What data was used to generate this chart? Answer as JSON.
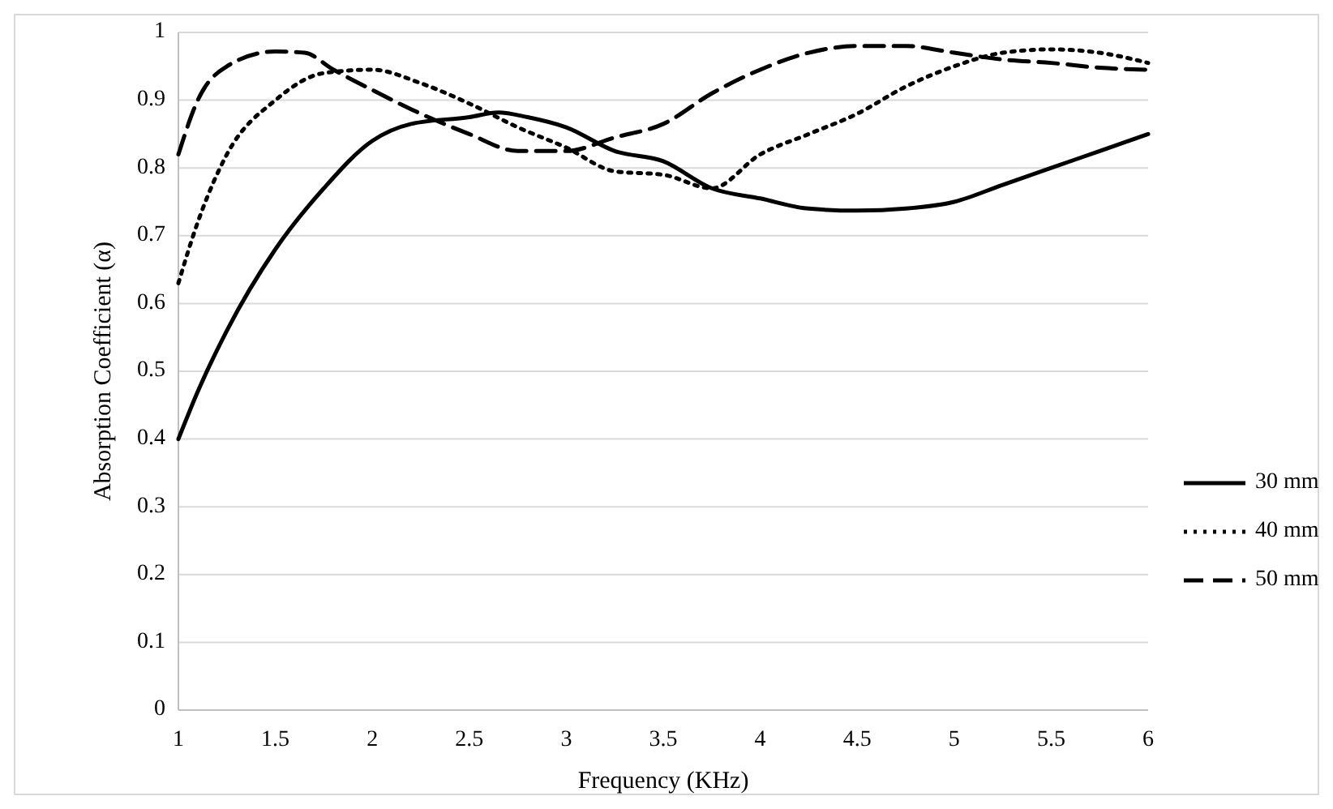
{
  "chart_data": {
    "type": "line",
    "xlabel": "Frequency (KHz)",
    "ylabel": "Absorption Coefficient (α)",
    "xlim": [
      1,
      6
    ],
    "xticks": [
      1,
      1.5,
      2,
      2.5,
      3,
      3.5,
      4,
      4.5,
      5,
      5.5,
      6
    ],
    "ylim": [
      0,
      1
    ],
    "yticks": [
      0,
      0.1,
      0.2,
      0.3,
      0.4,
      0.5,
      0.6,
      0.7,
      0.8,
      0.9,
      1
    ],
    "grid": "y",
    "legend": "right",
    "marker": "none",
    "series": [
      {
        "name": "30 mm",
        "color": "#000000",
        "line_style": "solid",
        "x": [
          1,
          1.1,
          1.25,
          1.5,
          1.75,
          2,
          2.2,
          2.5,
          2.65,
          2.8,
          3,
          3.25,
          3.5,
          3.75,
          4,
          4.25,
          4.5,
          4.75,
          5,
          5.25,
          5.5,
          5.75,
          6
        ],
        "values": [
          0.4,
          0.47,
          0.56,
          0.68,
          0.77,
          0.84,
          0.865,
          0.875,
          0.882,
          0.875,
          0.86,
          0.825,
          0.81,
          0.77,
          0.755,
          0.74,
          0.737,
          0.74,
          0.75,
          0.775,
          0.8,
          0.825,
          0.85
        ]
      },
      {
        "name": "40 mm",
        "color": "#000000",
        "line_style": "dotted",
        "x": [
          1,
          1.1,
          1.25,
          1.5,
          1.75,
          2,
          2.25,
          2.5,
          2.75,
          3,
          3.25,
          3.5,
          3.75,
          4,
          4.25,
          4.5,
          4.75,
          5,
          5.25,
          5.5,
          5.75,
          6
        ],
        "values": [
          0.63,
          0.72,
          0.82,
          0.9,
          0.94,
          0.945,
          0.925,
          0.895,
          0.86,
          0.83,
          0.795,
          0.79,
          0.77,
          0.82,
          0.85,
          0.88,
          0.92,
          0.95,
          0.97,
          0.975,
          0.97,
          0.955
        ]
      },
      {
        "name": "50 mm",
        "color": "#000000",
        "line_style": "dashed",
        "x": [
          1,
          1.1,
          1.25,
          1.5,
          1.65,
          1.8,
          2,
          2.25,
          2.5,
          2.75,
          3,
          3.25,
          3.5,
          3.75,
          4,
          4.25,
          4.5,
          4.75,
          5,
          5.25,
          5.5,
          5.75,
          6
        ],
        "values": [
          0.82,
          0.9,
          0.95,
          0.972,
          0.97,
          0.945,
          0.915,
          0.88,
          0.85,
          0.825,
          0.825,
          0.845,
          0.865,
          0.91,
          0.945,
          0.97,
          0.98,
          0.98,
          0.97,
          0.96,
          0.955,
          0.948,
          0.945
        ]
      }
    ]
  }
}
